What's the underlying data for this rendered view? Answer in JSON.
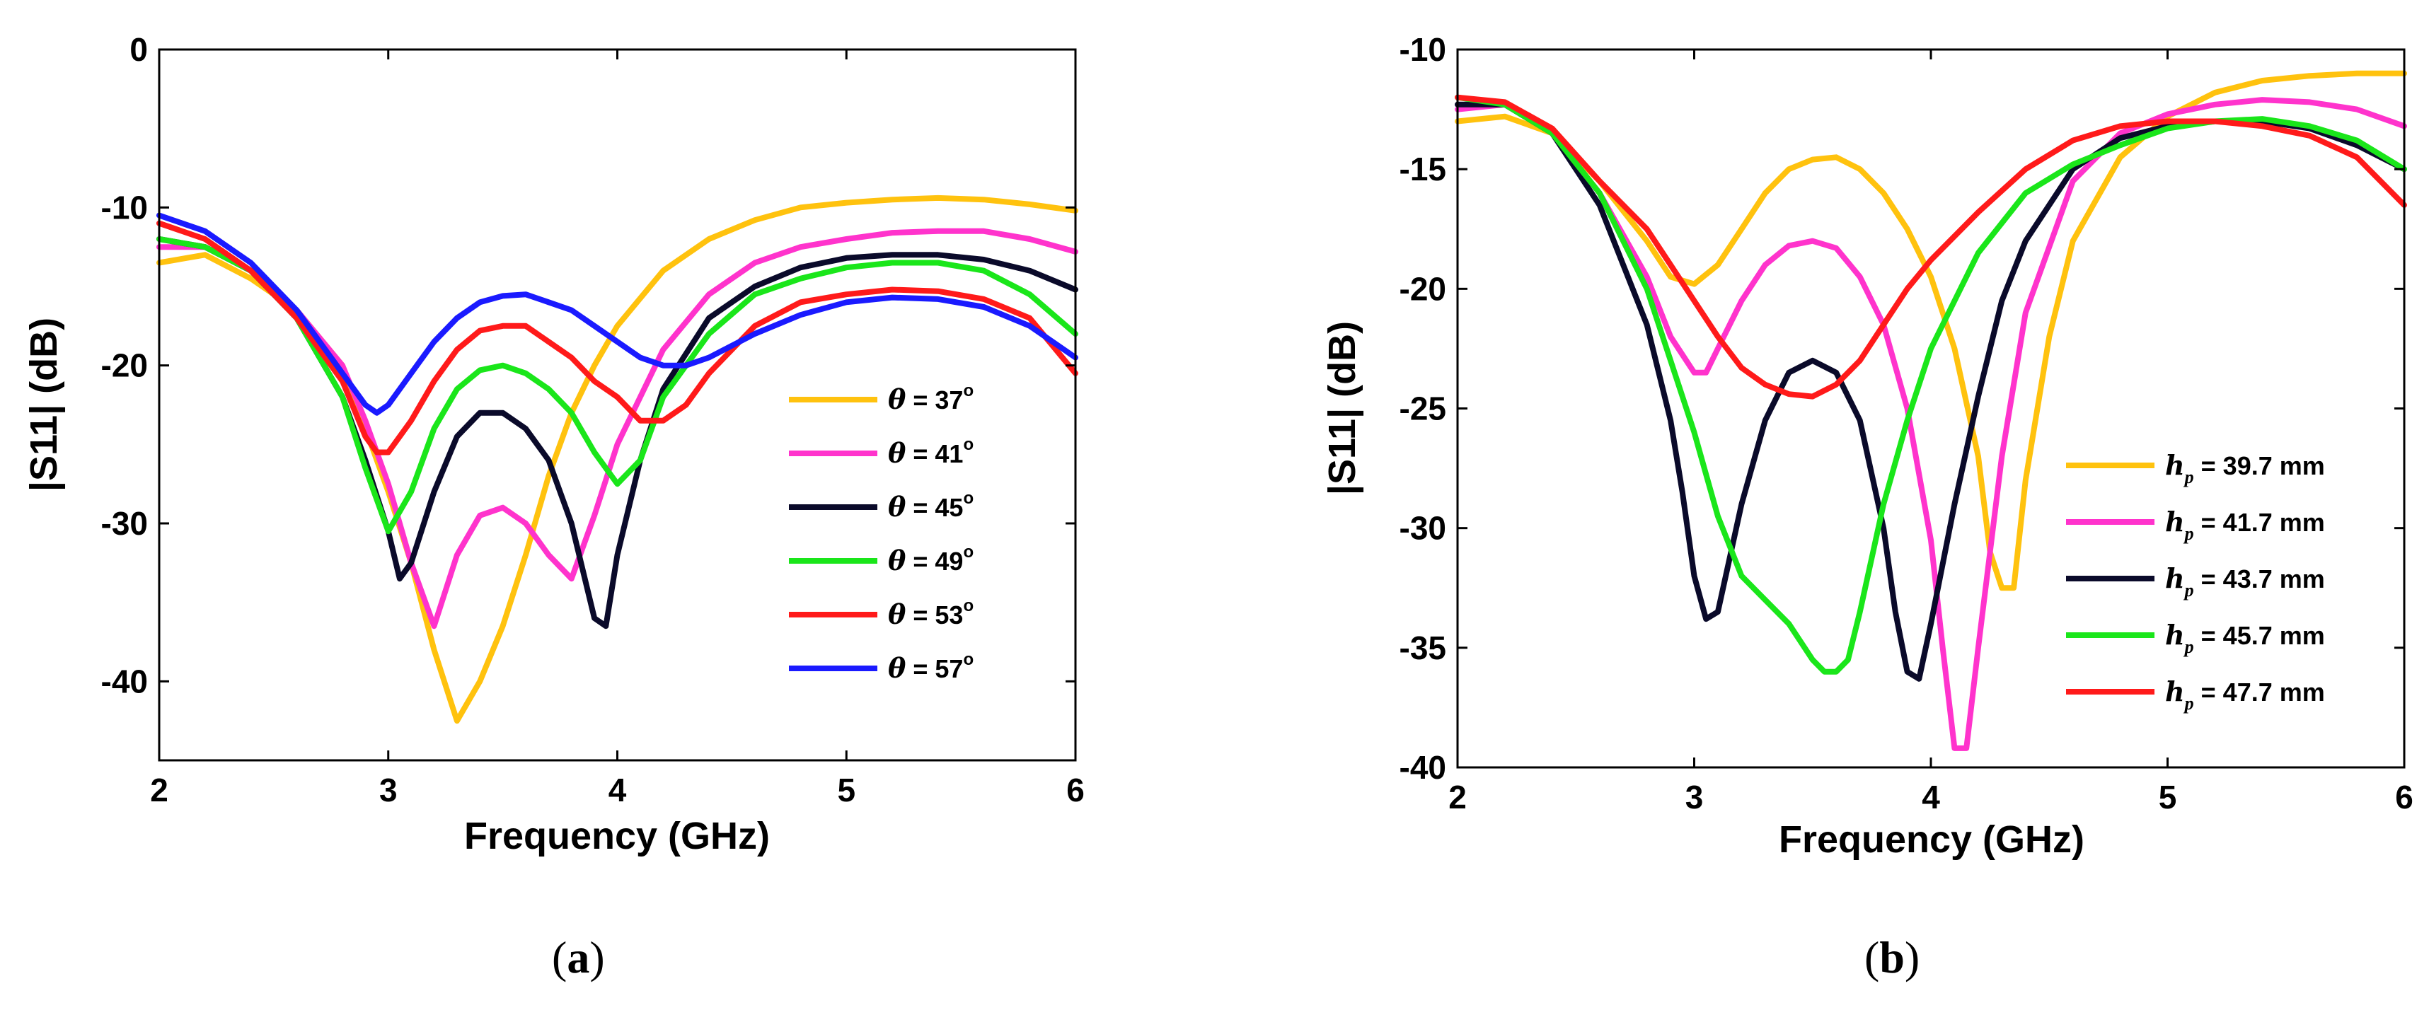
{
  "chart_data": [
    {
      "type": "line",
      "caption": {
        "open": "(",
        "letter": "a",
        "close": ")"
      },
      "xlabel": "Frequency (GHz)",
      "ylabel": "|S11| (dB)",
      "xlim": [
        2,
        6
      ],
      "ylim": [
        -45,
        0
      ],
      "xticks": [
        2,
        3,
        4,
        5,
        6
      ],
      "yticks": [
        0,
        -10,
        -20,
        -30,
        -40
      ],
      "legend_position": "center-right",
      "series": [
        {
          "name": "θ = 37°",
          "symbol": "θ",
          "text": " = 37",
          "sup": "o",
          "color": "#FFC20E",
          "x": [
            2.0,
            2.2,
            2.4,
            2.6,
            2.8,
            2.9,
            3.0,
            3.1,
            3.2,
            3.3,
            3.4,
            3.5,
            3.6,
            3.7,
            3.8,
            3.9,
            4.0,
            4.2,
            4.4,
            4.6,
            4.8,
            5.0,
            5.2,
            5.4,
            5.6,
            5.8,
            6.0
          ],
          "y": [
            -13.5,
            -13.0,
            -14.5,
            -16.5,
            -20.0,
            -24.0,
            -28.0,
            -32.5,
            -38.0,
            -42.5,
            -40.0,
            -36.5,
            -32.0,
            -27.0,
            -23.0,
            -20.0,
            -17.5,
            -14.0,
            -12.0,
            -10.8,
            -10.0,
            -9.7,
            -9.5,
            -9.4,
            -9.5,
            -9.8,
            -10.2
          ]
        },
        {
          "name": "θ = 41°",
          "symbol": "θ",
          "text": " = 41",
          "sup": "o",
          "color": "#FF33CC",
          "x": [
            2.0,
            2.2,
            2.4,
            2.6,
            2.8,
            2.9,
            3.0,
            3.1,
            3.2,
            3.3,
            3.4,
            3.5,
            3.6,
            3.7,
            3.8,
            3.9,
            4.0,
            4.2,
            4.4,
            4.6,
            4.8,
            5.0,
            5.2,
            5.4,
            5.6,
            5.8,
            6.0
          ],
          "y": [
            -12.5,
            -12.5,
            -14.0,
            -16.5,
            -20.0,
            -23.5,
            -27.5,
            -32.5,
            -36.5,
            -32.0,
            -29.5,
            -29.0,
            -30.0,
            -32.0,
            -33.5,
            -29.5,
            -25.0,
            -19.0,
            -15.5,
            -13.5,
            -12.5,
            -12.0,
            -11.6,
            -11.5,
            -11.5,
            -12.0,
            -12.8
          ]
        },
        {
          "name": "θ = 45°",
          "symbol": "θ",
          "text": " = 45",
          "sup": "o",
          "color": "#0A0A2A",
          "x": [
            2.0,
            2.2,
            2.4,
            2.6,
            2.8,
            2.9,
            3.0,
            3.05,
            3.1,
            3.2,
            3.3,
            3.4,
            3.5,
            3.6,
            3.7,
            3.8,
            3.9,
            3.95,
            4.0,
            4.1,
            4.2,
            4.4,
            4.6,
            4.8,
            5.0,
            5.2,
            5.4,
            5.6,
            5.8,
            6.0
          ],
          "y": [
            -12.0,
            -12.5,
            -14.0,
            -17.0,
            -22.0,
            -26.0,
            -30.5,
            -33.5,
            -32.5,
            -28.0,
            -24.5,
            -23.0,
            -23.0,
            -24.0,
            -26.0,
            -30.0,
            -36.0,
            -36.5,
            -32.0,
            -26.0,
            -21.5,
            -17.0,
            -15.0,
            -13.8,
            -13.2,
            -13.0,
            -13.0,
            -13.3,
            -14.0,
            -15.2
          ]
        },
        {
          "name": "θ = 49°",
          "symbol": "θ",
          "text": " = 49",
          "sup": "o",
          "color": "#1AE61A",
          "x": [
            2.0,
            2.2,
            2.4,
            2.6,
            2.8,
            2.9,
            3.0,
            3.1,
            3.2,
            3.3,
            3.4,
            3.5,
            3.6,
            3.7,
            3.8,
            3.9,
            4.0,
            4.1,
            4.2,
            4.4,
            4.6,
            4.8,
            5.0,
            5.2,
            5.4,
            5.6,
            5.8,
            6.0
          ],
          "y": [
            -12.0,
            -12.5,
            -14.0,
            -17.0,
            -22.0,
            -26.5,
            -30.5,
            -28.0,
            -24.0,
            -21.5,
            -20.3,
            -20.0,
            -20.5,
            -21.5,
            -23.0,
            -25.5,
            -27.5,
            -26.0,
            -22.0,
            -18.0,
            -15.5,
            -14.5,
            -13.8,
            -13.5,
            -13.5,
            -14.0,
            -15.5,
            -18.0
          ]
        },
        {
          "name": "θ = 53°",
          "symbol": "θ",
          "text": " = 53",
          "sup": "o",
          "color": "#FF1A1A",
          "x": [
            2.0,
            2.2,
            2.4,
            2.6,
            2.8,
            2.9,
            2.95,
            3.0,
            3.1,
            3.2,
            3.3,
            3.4,
            3.5,
            3.6,
            3.7,
            3.8,
            3.9,
            4.0,
            4.1,
            4.2,
            4.3,
            4.4,
            4.6,
            4.8,
            5.0,
            5.2,
            5.4,
            5.6,
            5.8,
            6.0
          ],
          "y": [
            -11.0,
            -12.0,
            -14.0,
            -17.0,
            -21.0,
            -24.5,
            -25.5,
            -25.5,
            -23.5,
            -21.0,
            -19.0,
            -17.8,
            -17.5,
            -17.5,
            -18.5,
            -19.5,
            -21.0,
            -22.0,
            -23.5,
            -23.5,
            -22.5,
            -20.5,
            -17.5,
            -16.0,
            -15.5,
            -15.2,
            -15.3,
            -15.8,
            -17.0,
            -20.5
          ]
        },
        {
          "name": "θ = 57°",
          "symbol": "θ",
          "text": " = 57",
          "sup": "o",
          "color": "#1A1AFF",
          "x": [
            2.0,
            2.2,
            2.4,
            2.6,
            2.8,
            2.9,
            2.95,
            3.0,
            3.1,
            3.2,
            3.3,
            3.4,
            3.5,
            3.6,
            3.7,
            3.8,
            3.9,
            4.0,
            4.1,
            4.2,
            4.3,
            4.4,
            4.6,
            4.8,
            5.0,
            5.2,
            5.4,
            5.6,
            5.8,
            6.0
          ],
          "y": [
            -10.5,
            -11.5,
            -13.5,
            -16.5,
            -20.5,
            -22.5,
            -23.0,
            -22.5,
            -20.5,
            -18.5,
            -17.0,
            -16.0,
            -15.6,
            -15.5,
            -16.0,
            -16.5,
            -17.5,
            -18.5,
            -19.5,
            -20.0,
            -20.0,
            -19.5,
            -18.0,
            -16.8,
            -16.0,
            -15.7,
            -15.8,
            -16.3,
            -17.5,
            -19.5
          ]
        }
      ]
    },
    {
      "type": "line",
      "caption": {
        "open": "(",
        "letter": "b",
        "close": ")"
      },
      "xlabel": "Frequency (GHz)",
      "ylabel": "|S11| (dB)",
      "xlim": [
        2,
        6
      ],
      "ylim": [
        -40,
        -10
      ],
      "xticks": [
        2,
        3,
        4,
        5,
        6
      ],
      "yticks": [
        -10,
        -15,
        -20,
        -25,
        -30,
        -35,
        -40
      ],
      "legend_position": "bottom-right",
      "series": [
        {
          "name": "hp = 39.7 mm",
          "symbol": "h",
          "sub": "p",
          "text": " = 39.7 mm",
          "color": "#FFC20E",
          "x": [
            2.0,
            2.2,
            2.4,
            2.6,
            2.8,
            2.9,
            3.0,
            3.1,
            3.2,
            3.3,
            3.4,
            3.5,
            3.6,
            3.7,
            3.8,
            3.9,
            4.0,
            4.1,
            4.2,
            4.25,
            4.3,
            4.35,
            4.4,
            4.5,
            4.6,
            4.8,
            5.0,
            5.2,
            5.4,
            5.6,
            5.8,
            6.0
          ],
          "y": [
            -13.0,
            -12.8,
            -13.5,
            -15.5,
            -18.0,
            -19.5,
            -19.8,
            -19.0,
            -17.5,
            -16.0,
            -15.0,
            -14.6,
            -14.5,
            -15.0,
            -16.0,
            -17.5,
            -19.5,
            -22.5,
            -27.0,
            -31.0,
            -32.5,
            -32.5,
            -28.0,
            -22.0,
            -18.0,
            -14.5,
            -12.8,
            -11.8,
            -11.3,
            -11.1,
            -11.0,
            -11.0
          ]
        },
        {
          "name": "hp = 41.7 mm",
          "symbol": "h",
          "sub": "p",
          "text": " = 41.7 mm",
          "color": "#FF33CC",
          "x": [
            2.0,
            2.2,
            2.4,
            2.6,
            2.8,
            2.9,
            3.0,
            3.05,
            3.1,
            3.2,
            3.3,
            3.4,
            3.5,
            3.6,
            3.7,
            3.8,
            3.9,
            4.0,
            4.05,
            4.1,
            4.15,
            4.2,
            4.3,
            4.4,
            4.6,
            4.8,
            5.0,
            5.2,
            5.4,
            5.6,
            5.8,
            6.0
          ],
          "y": [
            -12.5,
            -12.3,
            -13.5,
            -16.0,
            -19.5,
            -22.0,
            -23.5,
            -23.5,
            -22.5,
            -20.5,
            -19.0,
            -18.2,
            -18.0,
            -18.3,
            -19.5,
            -21.5,
            -25.0,
            -30.5,
            -35.0,
            -39.2,
            -39.2,
            -35.0,
            -27.0,
            -21.0,
            -15.5,
            -13.5,
            -12.7,
            -12.3,
            -12.1,
            -12.2,
            -12.5,
            -13.2
          ]
        },
        {
          "name": "hp = 43.7 mm",
          "symbol": "h",
          "sub": "p",
          "text": " = 43.7 mm",
          "color": "#0A0A2A",
          "x": [
            2.0,
            2.2,
            2.4,
            2.6,
            2.8,
            2.9,
            2.95,
            3.0,
            3.05,
            3.1,
            3.2,
            3.3,
            3.4,
            3.5,
            3.6,
            3.7,
            3.8,
            3.85,
            3.9,
            3.95,
            4.0,
            4.1,
            4.2,
            4.3,
            4.4,
            4.6,
            4.8,
            5.0,
            5.2,
            5.4,
            5.6,
            5.8,
            6.0
          ],
          "y": [
            -12.3,
            -12.3,
            -13.5,
            -16.5,
            -21.5,
            -25.5,
            -28.5,
            -32.0,
            -33.8,
            -33.5,
            -29.0,
            -25.5,
            -23.5,
            -23.0,
            -23.5,
            -25.5,
            -30.0,
            -33.5,
            -36.0,
            -36.3,
            -34.0,
            -29.0,
            -24.5,
            -20.5,
            -18.0,
            -15.0,
            -13.7,
            -13.2,
            -13.0,
            -13.0,
            -13.3,
            -14.0,
            -15.0
          ]
        },
        {
          "name": "hp = 45.7 mm",
          "symbol": "h",
          "sub": "p",
          "text": " = 45.7 mm",
          "color": "#1AE61A",
          "x": [
            2.0,
            2.2,
            2.4,
            2.6,
            2.8,
            2.9,
            3.0,
            3.1,
            3.2,
            3.3,
            3.4,
            3.5,
            3.55,
            3.6,
            3.65,
            3.7,
            3.8,
            3.9,
            4.0,
            4.2,
            4.4,
            4.6,
            4.8,
            5.0,
            5.2,
            5.4,
            5.6,
            5.8,
            6.0
          ],
          "y": [
            -12.0,
            -12.3,
            -13.5,
            -16.0,
            -20.0,
            -23.0,
            -26.0,
            -29.5,
            -32.0,
            -33.0,
            -34.0,
            -35.5,
            -36.0,
            -36.0,
            -35.5,
            -33.5,
            -29.0,
            -25.5,
            -22.5,
            -18.5,
            -16.0,
            -14.8,
            -14.0,
            -13.3,
            -13.0,
            -12.9,
            -13.2,
            -13.8,
            -15.0
          ]
        },
        {
          "name": "hp = 47.7 mm",
          "symbol": "h",
          "sub": "p",
          "text": " = 47.7 mm",
          "color": "#FF1A1A",
          "x": [
            2.0,
            2.2,
            2.4,
            2.6,
            2.8,
            2.9,
            3.0,
            3.1,
            3.2,
            3.3,
            3.4,
            3.5,
            3.6,
            3.7,
            3.8,
            3.9,
            4.0,
            4.2,
            4.4,
            4.6,
            4.8,
            5.0,
            5.2,
            5.4,
            5.6,
            5.8,
            6.0
          ],
          "y": [
            -12.0,
            -12.2,
            -13.3,
            -15.5,
            -17.5,
            -19.0,
            -20.5,
            -22.0,
            -23.3,
            -24.0,
            -24.4,
            -24.5,
            -24.0,
            -23.0,
            -21.5,
            -20.0,
            -18.8,
            -16.8,
            -15.0,
            -13.8,
            -13.2,
            -13.0,
            -13.0,
            -13.2,
            -13.6,
            -14.5,
            -16.5
          ]
        }
      ]
    }
  ]
}
